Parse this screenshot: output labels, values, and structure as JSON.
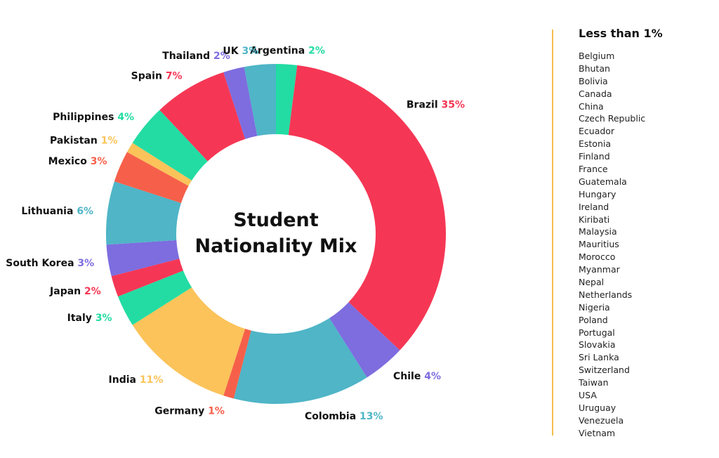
{
  "chart_data": {
    "type": "pie",
    "title": "Student Nationality Mix",
    "unit": "%",
    "slices": [
      {
        "label": "Argentina",
        "value": 2,
        "color": "#23dca3"
      },
      {
        "label": "Brazil",
        "value": 35,
        "color": "#f53755"
      },
      {
        "label": "Chile",
        "value": 4,
        "color": "#7d6ddf"
      },
      {
        "label": "Colombia",
        "value": 13,
        "color": "#4fb5c7"
      },
      {
        "label": "Germany",
        "value": 1,
        "color": "#f6604a"
      },
      {
        "label": "India",
        "value": 11,
        "color": "#fbc35a"
      },
      {
        "label": "Italy",
        "value": 3,
        "color": "#23dca3"
      },
      {
        "label": "Japan",
        "value": 2,
        "color": "#f53755"
      },
      {
        "label": "South Korea",
        "value": 3,
        "color": "#7d6ddf"
      },
      {
        "label": "Lithuania",
        "value": 6,
        "color": "#4fb5c7"
      },
      {
        "label": "Mexico",
        "value": 3,
        "color": "#f6604a"
      },
      {
        "label": "Pakistan",
        "value": 1,
        "color": "#fbc35a"
      },
      {
        "label": "Philippines",
        "value": 4,
        "color": "#23dca3"
      },
      {
        "label": "Spain",
        "value": 7,
        "color": "#f53755"
      },
      {
        "label": "Thailand",
        "value": 2,
        "color": "#7d6ddf"
      },
      {
        "label": "UK",
        "value": 3,
        "color": "#4fb5c7"
      }
    ]
  },
  "side_panel": {
    "heading": "Less than 1%",
    "countries": [
      "Belgium",
      "Bhutan",
      "Bolivia",
      "Canada",
      "China",
      "Czech Republic",
      "Ecuador",
      "Estonia",
      "Finland",
      "France",
      "Guatemala",
      "Hungary",
      "Ireland",
      "Kiribati",
      "Malaysia",
      "Mauritius",
      "Morocco",
      "Myanmar",
      "Nepal",
      "Netherlands",
      "Nigeria",
      "Poland",
      "Portugal",
      "Slovakia",
      "Sri Lanka",
      "Switzerland",
      "Taiwan",
      "USA",
      "Uruguay",
      "Venezuela",
      "Vietnam"
    ]
  },
  "colors": {
    "divider": "#f6bd4f"
  }
}
